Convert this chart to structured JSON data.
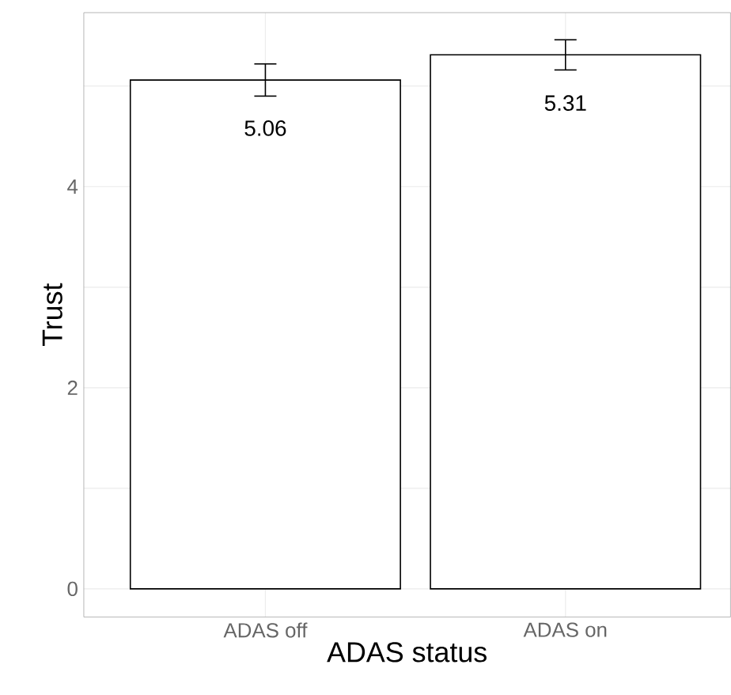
{
  "chart_data": {
    "type": "bar",
    "xlabel": "ADAS status",
    "ylabel": "Trust",
    "categories": [
      "ADAS off",
      "ADAS on"
    ],
    "values": [
      5.06,
      5.31
    ],
    "errors": [
      0.16,
      0.15
    ],
    "color": "#ffffff",
    "ylim": [
      -0.28,
      5.73
    ],
    "yticks": [
      0,
      {
        "value": 1,
        "label": null
      },
      2,
      {
        "value": 3,
        "label": null
      },
      4,
      {
        "value": 5,
        "label": null
      }
    ],
    "data_labels": true,
    "grid": true
  }
}
